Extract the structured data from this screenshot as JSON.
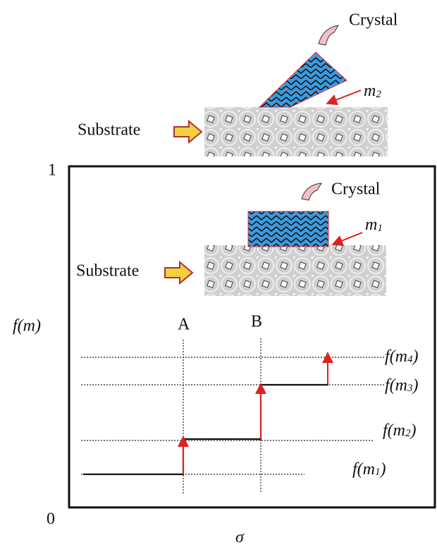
{
  "top_panel": {
    "crystal_label": "Crystal",
    "interface_label": {
      "text": "m",
      "sub": "2"
    },
    "substrate_label": "Substrate"
  },
  "inner_panel": {
    "crystal_label": "Crystal",
    "interface_label": {
      "text": "m",
      "sub": "1"
    },
    "substrate_label": "Substrate"
  },
  "axes": {
    "y_label": "f(m)",
    "y_top": "1",
    "y_bottom": "0",
    "x_label": "σ"
  },
  "markers": [
    "A",
    "B"
  ],
  "levels": [
    {
      "text": "f(m",
      "sub": "4",
      "tail": ")"
    },
    {
      "text": "f(m",
      "sub": "3",
      "tail": ")"
    },
    {
      "text": "f(m",
      "sub": "2",
      "tail": ")"
    },
    {
      "text": "f(m",
      "sub": "1",
      "tail": ")"
    }
  ]
}
